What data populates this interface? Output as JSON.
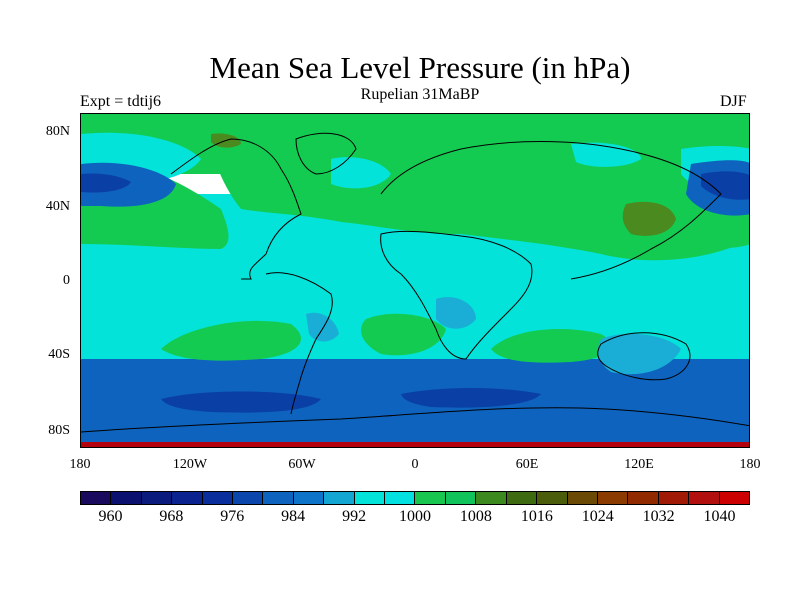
{
  "title": "Mean Sea Level Pressure (in hPa)",
  "subtitle": "Rupelian  31MaBP",
  "experiment": "Expt = tdtij6",
  "season": "DJF",
  "map": {
    "lat_ticks": [
      "80N",
      "40N",
      "0",
      "40S",
      "80S"
    ],
    "lon_ticks": [
      "180",
      "120W",
      "60W",
      "0",
      "60E",
      "120E",
      "180"
    ],
    "colors": {
      "band_984_992": "#0e63bf",
      "band_976_984": "#0a3fa6",
      "band_992_1000": "#03e3d9",
      "band_988_996": "#1aaed6",
      "band_1000_1008": "#14cb52",
      "band_1012_1016": "#4a8a1e",
      "band_1040_plus": "#b3000c",
      "coast": "#000000"
    }
  },
  "colorbar": {
    "colors": [
      "#1a0a5e",
      "#0b116e",
      "#0a1a7d",
      "#0b238f",
      "#0a2f9c",
      "#0a46ac",
      "#0e63bf",
      "#0e74c9",
      "#13a6d2",
      "#03e3d9",
      "#03e0e0",
      "#18c650",
      "#10c35a",
      "#3c8a1f",
      "#3e6a12",
      "#4b5d0a",
      "#6a4a05",
      "#8b3a00",
      "#922a00",
      "#a11a05",
      "#b20f0f",
      "#cc0000"
    ],
    "labels": [
      "960",
      "968",
      "976",
      "984",
      "992",
      "1000",
      "1008",
      "1016",
      "1024",
      "1032",
      "1040"
    ]
  }
}
